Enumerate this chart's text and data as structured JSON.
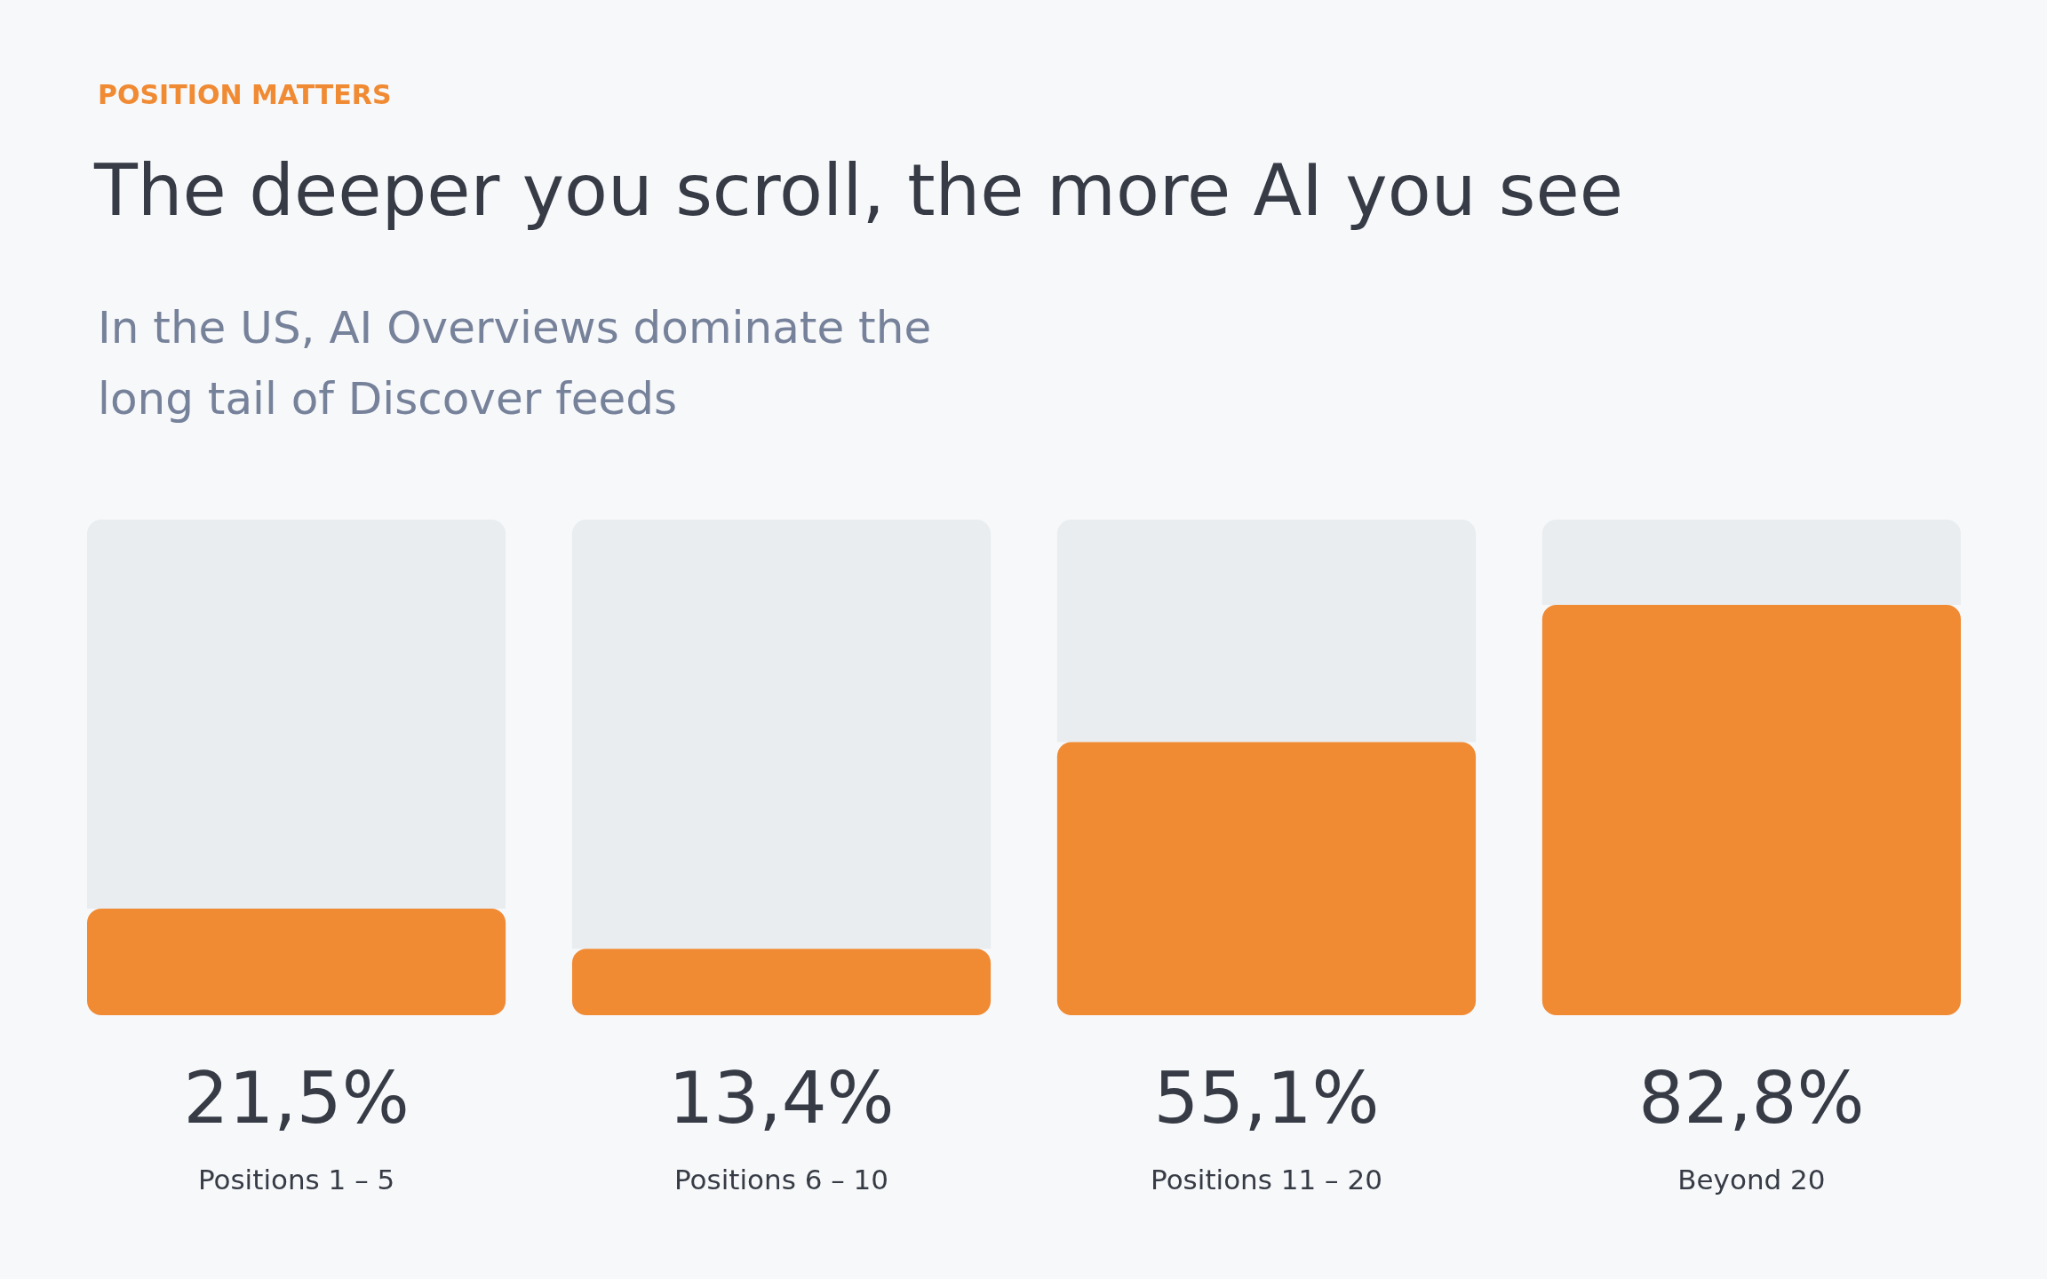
{
  "chart_data": {
    "type": "bar",
    "annotations": [
      "POSITION MATTERS"
    ],
    "title": "The deeper you scroll, the more AI you see",
    "subtitle": "In the US, AI Overviews dominate the long tail of Discover feeds",
    "categories": [
      "Positions 1 – 5",
      "Positions 6 – 10",
      "Positions 11 – 20",
      "Beyond 20"
    ],
    "stacked": true,
    "ylim": [
      0,
      100
    ],
    "tick_labels": "x",
    "series": [
      {
        "color": "#f08a33",
        "values": [
          21.5,
          13.4,
          55.1,
          82.8
        ],
        "value_labels": [
          "21,5%",
          "13,4%",
          "55,1%",
          "82,8%"
        ]
      },
      {
        "color": "#e9edf0",
        "values": [
          78.5,
          86.6,
          44.9,
          17.2
        ]
      }
    ]
  }
}
